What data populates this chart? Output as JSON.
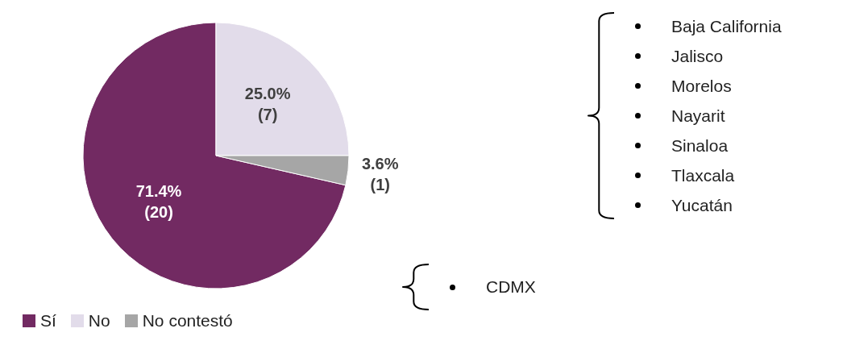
{
  "chart_data": {
    "type": "pie",
    "categories": [
      "Sí",
      "No",
      "No contestó"
    ],
    "values": [
      20,
      7,
      1
    ],
    "colors": [
      "#722a62",
      "#e2dcea",
      "#a6a6a6"
    ],
    "value_labels": [
      "71.4%\n(20)",
      "25.0%\n(7)",
      "3.6%\n(1)"
    ],
    "legend": "bottom left",
    "annotations": [
      {
        "text": "Baja California",
        "x": "No"
      },
      {
        "text": "Jalisco",
        "x": "No"
      },
      {
        "text": "Morelos",
        "x": "No"
      },
      {
        "text": "Nayarit",
        "x": "No"
      },
      {
        "text": "Sinaloa",
        "x": "No"
      },
      {
        "text": "Tlaxcala",
        "x": "No"
      },
      {
        "text": "Yucatán",
        "x": "No"
      },
      {
        "text": "CDMX",
        "x": "No contestó"
      }
    ]
  }
}
